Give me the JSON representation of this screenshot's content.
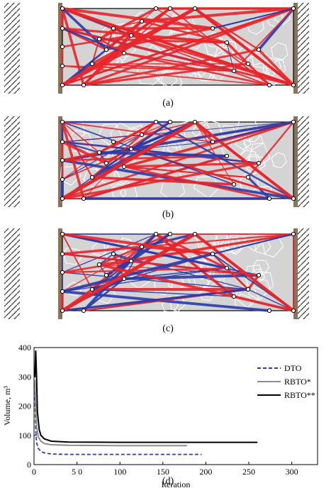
{
  "panels": [
    {
      "label": "(a)"
    },
    {
      "label": "(b)"
    },
    {
      "label": "(c)"
    }
  ],
  "colors": {
    "tension": "#e8262b",
    "compression": "#2b3aa8",
    "domain_fill": "#d4d4d4",
    "voronoi": "#ffffff",
    "support": "#8a7358"
  },
  "chart": {
    "label": "(d)",
    "ylabel": "Volume, m³",
    "xlabel": "Iteration",
    "yticks": [
      "0",
      "100",
      "200",
      "300",
      "400"
    ],
    "xticks": [
      "0",
      "5 0",
      "100",
      "150",
      "200",
      "250",
      "300"
    ],
    "legend": [
      {
        "name": "DTO",
        "color": "#2b3aa8",
        "style": "dashed"
      },
      {
        "name": "RBTO*",
        "color": "#8c8c8c",
        "style": "solid"
      },
      {
        "name": "RBTO**",
        "color": "#000000",
        "style": "solid"
      }
    ]
  },
  "chart_data": {
    "type": "line",
    "xlabel": "Iteration",
    "ylabel": "Volume, m³",
    "xlim": [
      0,
      330
    ],
    "ylim": [
      0,
      400
    ],
    "legend_position": "right",
    "series": [
      {
        "name": "DTO",
        "x": [
          1,
          2,
          3,
          5,
          8,
          12,
          20,
          40,
          100,
          195
        ],
        "y": [
          250,
          120,
          75,
          55,
          45,
          40,
          36,
          35,
          35,
          35
        ]
      },
      {
        "name": "RBTO*",
        "x": [
          1,
          2,
          3,
          5,
          8,
          12,
          20,
          40,
          100,
          178
        ],
        "y": [
          290,
          200,
          130,
          95,
          80,
          72,
          68,
          66,
          65,
          65
        ]
      },
      {
        "name": "RBTO**",
        "x": [
          1,
          2,
          3,
          4,
          6,
          8,
          12,
          20,
          40,
          100,
          260
        ],
        "y": [
          300,
          390,
          300,
          180,
          120,
          100,
          88,
          80,
          77,
          76,
          76
        ]
      }
    ]
  }
}
